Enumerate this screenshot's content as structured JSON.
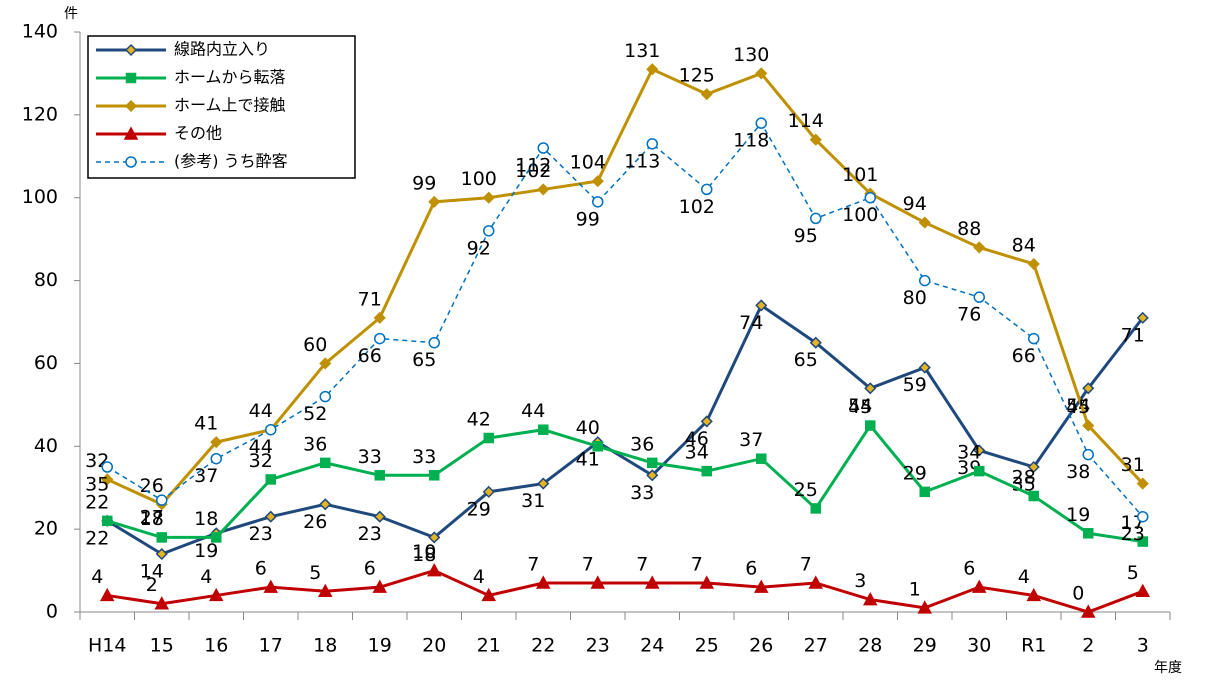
{
  "chart_data": {
    "type": "line",
    "y_unit": "件",
    "x_unit": "年度",
    "categories": [
      "H14",
      "15",
      "16",
      "17",
      "18",
      "19",
      "20",
      "21",
      "22",
      "23",
      "24",
      "25",
      "26",
      "27",
      "28",
      "29",
      "30",
      "R1",
      "2",
      "3"
    ],
    "series": [
      {
        "name": "線路内立入り",
        "color": "#1f497d",
        "marker": "diamond",
        "marker_fill": "#e6b422",
        "dashed": false,
        "values": [
          22,
          14,
          19,
          23,
          26,
          23,
          18,
          29,
          31,
          41,
          33,
          46,
          74,
          65,
          54,
          59,
          39,
          35,
          54,
          71
        ]
      },
      {
        "name": "ホームから転落",
        "color": "#00b050",
        "marker": "square",
        "marker_fill": "#00b050",
        "dashed": false,
        "values": [
          22,
          18,
          18,
          32,
          36,
          33,
          33,
          42,
          44,
          40,
          36,
          34,
          37,
          25,
          45,
          29,
          34,
          28,
          19,
          17
        ]
      },
      {
        "name": "ホーム上で接触",
        "color": "#bf9000",
        "marker": "diamond",
        "marker_fill": "#bf9000",
        "dashed": false,
        "values": [
          32,
          26,
          41,
          44,
          60,
          71,
          99,
          100,
          102,
          104,
          131,
          125,
          130,
          114,
          101,
          94,
          88,
          84,
          45,
          31
        ]
      },
      {
        "name": "その他",
        "color": "#c00000",
        "marker": "triangle",
        "marker_fill": "#c00000",
        "dashed": false,
        "values": [
          4,
          2,
          4,
          6,
          5,
          6,
          10,
          4,
          7,
          7,
          7,
          7,
          6,
          7,
          3,
          1,
          6,
          4,
          0,
          5
        ]
      },
      {
        "name": "(参考) うち酔客",
        "color": "#0070c0",
        "marker": "circle",
        "marker_fill": "#ffffff",
        "dashed": true,
        "values": [
          35,
          27,
          37,
          44,
          52,
          66,
          65,
          92,
          112,
          99,
          113,
          102,
          118,
          95,
          100,
          80,
          76,
          66,
          38,
          23
        ]
      }
    ],
    "ylim": [
      0,
      140
    ],
    "yticks": [
      0,
      20,
      40,
      60,
      80,
      100,
      120,
      140
    ],
    "grid": false,
    "legend": "upper left"
  }
}
